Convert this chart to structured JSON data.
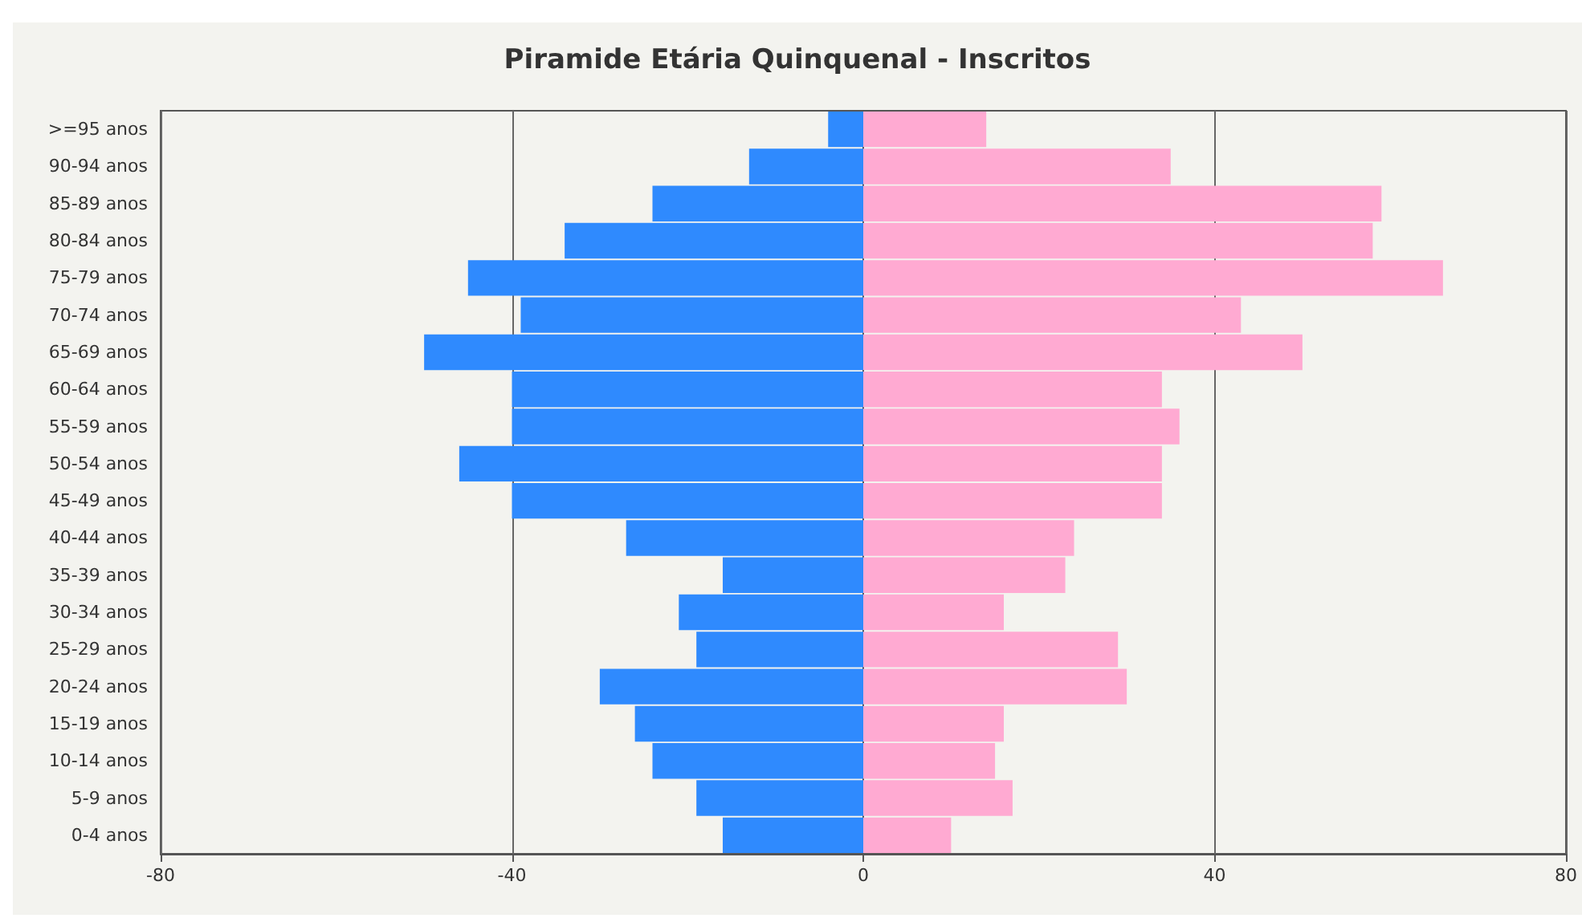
{
  "chart_data": {
    "type": "bar",
    "orientation": "horizontal",
    "title": "Piramide Etária Quinquenal - Inscritos",
    "categories": [
      ">=95 anos",
      "90-94 anos",
      "85-89 anos",
      "80-84 anos",
      "75-79 anos",
      "70-74 anos",
      "65-69 anos",
      "60-64 anos",
      "55-59 anos",
      "50-54 anos",
      "45-49 anos",
      "40-44 anos",
      "35-39 anos",
      "30-34 anos",
      "25-29 anos",
      "20-24 anos",
      "15-19 anos",
      "10-14 anos",
      "5-9 anos",
      "0-4 anos"
    ],
    "series": [
      {
        "color": "#2f8afe",
        "values": [
          -4,
          -13,
          -24,
          -34,
          -45,
          -39,
          -50,
          -40,
          -40,
          -46,
          -40,
          -27,
          -16,
          -21,
          -19,
          -30,
          -26,
          -24,
          -19,
          -16
        ]
      },
      {
        "color": "#ffaad2",
        "values": [
          14,
          35,
          59,
          58,
          66,
          43,
          50,
          34,
          36,
          34,
          34,
          24,
          23,
          16,
          29,
          30,
          16,
          15,
          17,
          10
        ]
      }
    ],
    "stacked": true,
    "xlim": [
      -80,
      80
    ],
    "xticks": [
      -80,
      -40,
      0,
      40,
      80
    ],
    "grid": "x"
  }
}
